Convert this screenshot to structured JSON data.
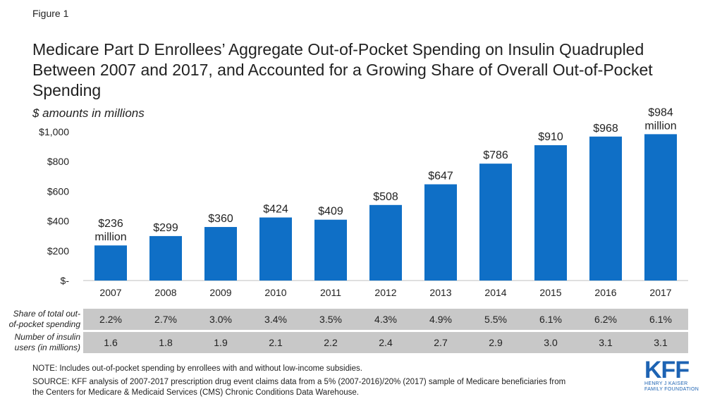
{
  "figure_label": "Figure 1",
  "chart_data": {
    "type": "bar",
    "title": "Medicare Part D Enrollees’ Aggregate Out-of-Pocket Spending on Insulin Quadrupled Between 2007 and 2017, and Accounted for a Growing Share of Overall Out-of-Pocket Spending",
    "subtitle": "$ amounts in millions",
    "categories": [
      "2007",
      "2008",
      "2009",
      "2010",
      "2011",
      "2012",
      "2013",
      "2014",
      "2015",
      "2016",
      "2017"
    ],
    "values": [
      236,
      299,
      360,
      424,
      409,
      508,
      647,
      786,
      910,
      968,
      984
    ],
    "data_labels": [
      "$236\nmillion",
      "$299",
      "$360",
      "$424",
      "$409",
      "$508",
      "$647",
      "$786",
      "$910",
      "$968",
      "$984\nmillion"
    ],
    "ylim": [
      0,
      1000
    ],
    "yticks": [
      0,
      200,
      400,
      600,
      800,
      1000
    ],
    "ytick_labels": [
      "$-",
      "$200",
      "$400",
      "$600",
      "$800",
      "$1,000"
    ],
    "bar_color": "#0f6fc6",
    "grid": false
  },
  "table_rows": [
    {
      "label": "Share of total out-of-pocket spending",
      "label_lines": [
        "Share of total out-",
        "of-pocket spending"
      ],
      "values": [
        "2.2%",
        "2.7%",
        "3.0%",
        "3.4%",
        "3.5%",
        "4.3%",
        "4.9%",
        "5.5%",
        "6.1%",
        "6.2%",
        "6.1%"
      ]
    },
    {
      "label": "Number of insulin users (in millions)",
      "label_lines": [
        "Number of insulin",
        "users (in millions)"
      ],
      "values": [
        "1.6",
        "1.8",
        "1.9",
        "2.1",
        "2.2",
        "2.4",
        "2.7",
        "2.9",
        "3.0",
        "3.1",
        "3.1"
      ]
    }
  ],
  "note": "NOTE: Includes out-of-pocket spending by enrollees with and without low-income subsidies.",
  "source_lines": [
    "SOURCE: KFF analysis of 2007-2017 prescription drug event claims data from a 5% (2007-2016)/20% (2017) sample of Medicare beneficiaries from",
    "the Centers for Medicare & Medicaid Services (CMS) Chronic Conditions Data Warehouse."
  ],
  "logo": {
    "mark": "KFF",
    "line1": "HENRY J KAISER",
    "line2": "FAMILY FOUNDATION"
  }
}
